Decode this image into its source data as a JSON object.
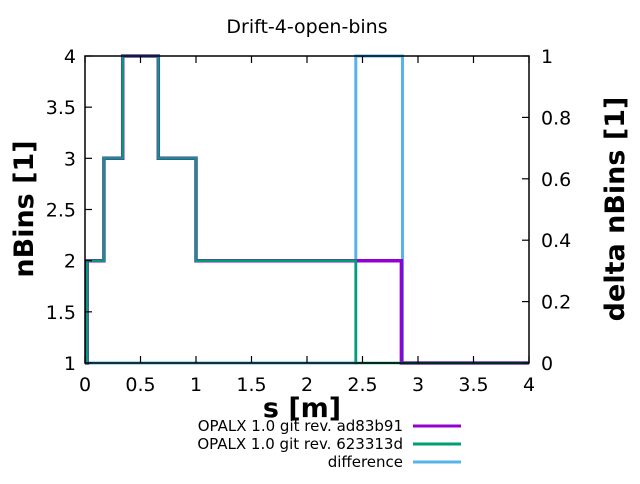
{
  "title": "Drift-4-open-bins",
  "chart_data": {
    "type": "line",
    "style": "steps",
    "title": "Drift-4-open-bins",
    "xlabel": "s [m]",
    "ylabel": "nBins [1]",
    "y2label": "delta nBins [1]",
    "xlim": [
      0,
      4
    ],
    "ylim": [
      1,
      4
    ],
    "y2lim": [
      0,
      1
    ],
    "grid": false,
    "legend_position": "below-right",
    "x_ticks": {
      "values": [
        0,
        0.5,
        1,
        1.5,
        2,
        2.5,
        3,
        3.5,
        4
      ],
      "labels": [
        "0",
        "0.5",
        "1",
        "1.5",
        "2",
        "2.5",
        "3",
        "3.5",
        "4"
      ]
    },
    "y_ticks": {
      "values": [
        1,
        1.5,
        2,
        2.5,
        3,
        3.5,
        4
      ],
      "labels": [
        "1",
        "1.5",
        "2",
        "2.5",
        "3",
        "3.5",
        "4"
      ]
    },
    "y2_ticks": {
      "values": [
        0,
        0.2,
        0.4,
        0.6,
        0.8,
        1
      ],
      "labels": [
        "0",
        "0.2",
        "0.4",
        "0.6",
        "0.8",
        "1"
      ]
    },
    "series": [
      {
        "name": "OPALX 1.0 git rev. ad83b91",
        "color": "#9400d3",
        "axis": "y1",
        "mode": "steps",
        "points": [
          [
            0,
            1
          ],
          [
            0.02,
            2
          ],
          [
            0.17,
            3
          ],
          [
            0.34,
            4
          ],
          [
            0.66,
            3
          ],
          [
            1.0,
            2
          ],
          [
            2.85,
            1
          ],
          [
            4,
            1
          ]
        ]
      },
      {
        "name": "OPALX 1.0 git rev. 623313d",
        "color": "#009e73",
        "axis": "y1",
        "mode": "steps",
        "points": [
          [
            0,
            1
          ],
          [
            0.02,
            2
          ],
          [
            0.17,
            3
          ],
          [
            0.34,
            4
          ],
          [
            0.66,
            3
          ],
          [
            1.0,
            2
          ],
          [
            2.44,
            1
          ],
          [
            4,
            1
          ]
        ]
      },
      {
        "name": "difference",
        "color": "#56b4e9",
        "axis": "y2",
        "mode": "steps",
        "points": [
          [
            0,
            0
          ],
          [
            2.44,
            1
          ],
          [
            2.86,
            0
          ],
          [
            4,
            0
          ]
        ]
      }
    ]
  },
  "legend": {
    "items": [
      {
        "label": "OPALX 1.0 git rev. ad83b91",
        "color": "#9400d3"
      },
      {
        "label": "OPALX 1.0 git rev. 623313d",
        "color": "#009e73"
      },
      {
        "label": "difference",
        "color": "#56b4e9"
      }
    ]
  }
}
